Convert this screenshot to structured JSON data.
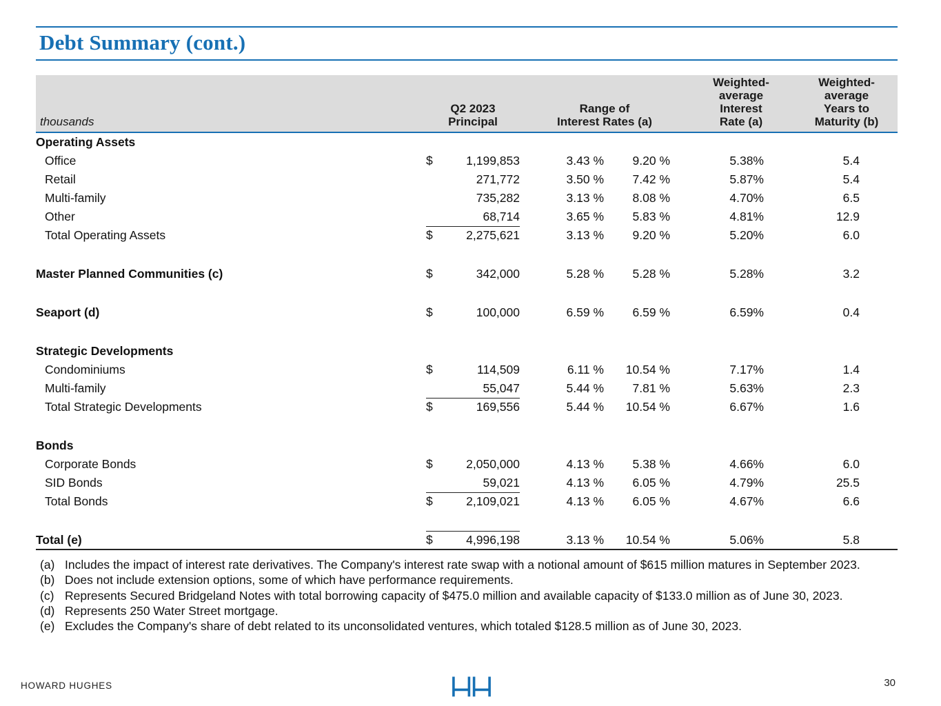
{
  "page": {
    "title": "Debt Summary (cont.)",
    "footer_brand": "HOWARD HUGHES",
    "page_number": "30"
  },
  "colors": {
    "accent_blue": "#1770B4",
    "header_gray": "#DCDCDC"
  },
  "table": {
    "unit_label": "thousands",
    "headers": {
      "principal": "Q2 2023\nPrincipal",
      "range": "Range of\nInterest Rates (a)",
      "wa_rate": "Weighted-\naverage\nInterest\nRate (a)",
      "wa_years": "Weighted-\naverage\nYears to\nMaturity (b)"
    },
    "rows": [
      {
        "type": "section",
        "label": "Operating Assets"
      },
      {
        "type": "item",
        "label": "Office",
        "dollar": "$",
        "principal": "1,199,853",
        "rate_min": "3.43 %",
        "rate_max": "9.20 %",
        "wa_rate": "5.38%",
        "years": "5.4"
      },
      {
        "type": "item",
        "label": "Retail",
        "dollar": "",
        "principal": "271,772",
        "rate_min": "3.50 %",
        "rate_max": "7.42 %",
        "wa_rate": "5.87%",
        "years": "5.4"
      },
      {
        "type": "item",
        "label": "Multi-family",
        "dollar": "",
        "principal": "735,282",
        "rate_min": "3.13 %",
        "rate_max": "8.08 %",
        "wa_rate": "4.70%",
        "years": "6.5"
      },
      {
        "type": "item",
        "label": "Other",
        "dollar": "",
        "principal": "68,714",
        "rate_min": "3.65 %",
        "rate_max": "5.83 %",
        "wa_rate": "4.81%",
        "years": "12.9",
        "underline_principal": true
      },
      {
        "type": "total",
        "label": "Total Operating Assets",
        "dollar": "$",
        "principal": "2,275,621",
        "rate_min": "3.13 %",
        "rate_max": "9.20 %",
        "wa_rate": "5.20%",
        "years": "6.0"
      },
      {
        "type": "blank"
      },
      {
        "type": "standalone",
        "label": "Master Planned Communities (c)",
        "dollar": "$",
        "principal": "342,000",
        "rate_min": "5.28 %",
        "rate_max": "5.28 %",
        "wa_rate": "5.28%",
        "years": "3.2"
      },
      {
        "type": "blank"
      },
      {
        "type": "standalone",
        "label": "Seaport (d)",
        "dollar": "$",
        "principal": "100,000",
        "rate_min": "6.59 %",
        "rate_max": "6.59 %",
        "wa_rate": "6.59%",
        "years": "0.4"
      },
      {
        "type": "blank"
      },
      {
        "type": "section",
        "label": "Strategic Developments"
      },
      {
        "type": "item",
        "label": "Condominiums",
        "dollar": "$",
        "principal": "114,509",
        "rate_min": "6.11 %",
        "rate_max": "10.54 %",
        "wa_rate": "7.17%",
        "years": "1.4"
      },
      {
        "type": "item",
        "label": "Multi-family",
        "dollar": "",
        "principal": "55,047",
        "rate_min": "5.44 %",
        "rate_max": "7.81 %",
        "wa_rate": "5.63%",
        "years": "2.3",
        "underline_principal": true
      },
      {
        "type": "total",
        "label": "Total Strategic Developments",
        "dollar": "$",
        "principal": "169,556",
        "rate_min": "5.44 %",
        "rate_max": "10.54 %",
        "wa_rate": "6.67%",
        "years": "1.6"
      },
      {
        "type": "blank"
      },
      {
        "type": "section",
        "label": "Bonds"
      },
      {
        "type": "item",
        "label": "Corporate Bonds",
        "dollar": "$",
        "principal": "2,050,000",
        "rate_min": "4.13 %",
        "rate_max": "5.38 %",
        "wa_rate": "4.66%",
        "years": "6.0"
      },
      {
        "type": "item",
        "label": "SID Bonds",
        "dollar": "",
        "principal": "59,021",
        "rate_min": "4.13 %",
        "rate_max": "6.05 %",
        "wa_rate": "4.79%",
        "years": "25.5",
        "underline_principal": true
      },
      {
        "type": "total",
        "label": "Total Bonds",
        "dollar": "$",
        "principal": "2,109,021",
        "rate_min": "4.13 %",
        "rate_max": "6.05 %",
        "wa_rate": "4.67%",
        "years": "6.6"
      },
      {
        "type": "blank"
      },
      {
        "type": "grand",
        "label": "Total (e)",
        "dollar": "$",
        "principal": "4,996,198",
        "rate_min": "3.13 %",
        "rate_max": "10.54 %",
        "wa_rate": "5.06%",
        "years": "5.8"
      }
    ]
  },
  "footnotes": [
    {
      "label": "(a)",
      "text": "Includes the impact of interest rate derivatives. The Company's interest rate swap with a notional amount of $615 million matures in September 2023."
    },
    {
      "label": "(b)",
      "text": "Does not include extension options, some of which have performance requirements."
    },
    {
      "label": "(c)",
      "text": "Represents Secured Bridgeland Notes with total borrowing capacity of $475.0 million and available capacity of $133.0 million as of June 30, 2023."
    },
    {
      "label": "(d)",
      "text": "Represents 250 Water Street mortgage."
    },
    {
      "label": "(e)",
      "text": "Excludes the Company's share of debt related to its unconsolidated ventures, which totaled $128.5 million as of June 30, 2023."
    }
  ]
}
